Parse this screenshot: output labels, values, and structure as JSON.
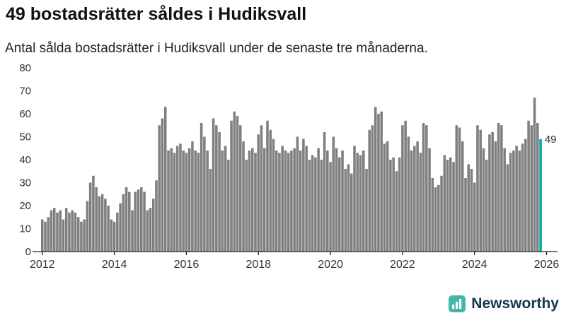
{
  "chart_data": {
    "type": "bar",
    "title": "49 bostadsrätter såldes i Hudiksvall",
    "subtitle": "Antal sålda bostadsrätter i Hudiksvall under de senaste tre månaderna.",
    "frequency": "monthly",
    "x_start": {
      "year": 2012,
      "month": 1
    },
    "values": [
      14,
      13,
      15,
      18,
      19,
      17,
      18,
      14,
      19,
      17,
      18,
      17,
      15,
      13,
      14,
      22,
      30,
      33,
      28,
      24,
      25,
      23,
      20,
      14,
      13,
      17,
      21,
      25,
      28,
      26,
      18,
      26,
      27,
      28,
      26,
      18,
      19,
      23,
      31,
      55,
      58,
      63,
      44,
      45,
      43,
      46,
      47,
      44,
      43,
      45,
      48,
      44,
      43,
      56,
      50,
      44,
      36,
      58,
      55,
      52,
      44,
      46,
      40,
      57,
      61,
      59,
      55,
      48,
      40,
      44,
      45,
      43,
      51,
      55,
      45,
      57,
      53,
      49,
      44,
      43,
      46,
      44,
      43,
      44,
      45,
      50,
      44,
      49,
      46,
      40,
      42,
      41,
      45,
      40,
      52,
      44,
      39,
      50,
      45,
      41,
      44,
      36,
      38,
      34,
      46,
      43,
      42,
      44,
      36,
      53,
      55,
      63,
      60,
      61,
      47,
      48,
      40,
      41,
      35,
      41,
      55,
      57,
      50,
      44,
      46,
      48,
      43,
      56,
      55,
      45,
      32,
      28,
      29,
      33,
      42,
      40,
      41,
      39,
      55,
      54,
      48,
      32,
      38,
      36,
      30,
      55,
      53,
      45,
      40,
      51,
      52,
      48,
      56,
      55,
      45,
      38,
      43,
      44,
      46,
      44,
      47,
      49,
      57,
      55,
      67,
      56,
      49
    ],
    "highlight": {
      "index": 166,
      "label": "49",
      "color": "#00a6a2"
    },
    "bar_color": "#7f7f7f",
    "ylim": [
      0,
      80
    ],
    "yticks": [
      0,
      10,
      20,
      30,
      40,
      50,
      60,
      70,
      80
    ],
    "xticks": [
      2012,
      2014,
      2016,
      2018,
      2020,
      2022,
      2024,
      2026
    ],
    "grid": false,
    "legend": "none"
  },
  "footer": {
    "brand": "Newsworthy",
    "logo_color": "#42b7aa",
    "brand_color": "#14394c"
  }
}
